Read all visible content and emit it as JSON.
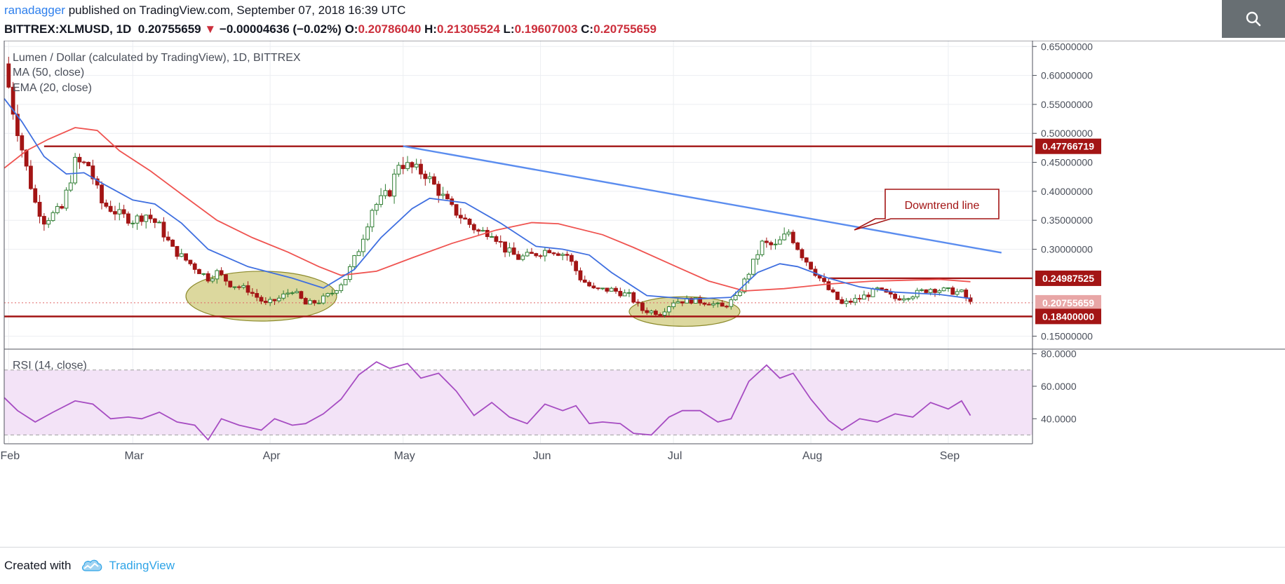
{
  "header": {
    "author": "ranadagger",
    "published_text": "published on TradingView.com, September 07, 2018 16:39 UTC",
    "symbol": "BITTREX:XLMUSD, 1D",
    "last": "0.20755659",
    "change": "−0.00004636 (−0.02%)",
    "o_label": "O:",
    "o_val": "0.20786040",
    "h_label": "H:",
    "h_val": "0.21305524",
    "l_label": "L:",
    "l_val": "0.19607003",
    "c_label": "C:",
    "c_val": "0.20755659",
    "search_icon": "search-icon"
  },
  "legend": {
    "title": "Lumen / Dollar (calculated by TradingView), 1D, BITTREX",
    "ma": "MA (50, close)",
    "ema": "EMA (20, close)",
    "rsi": "RSI (14, close)"
  },
  "annotation": {
    "text": "Downtrend line"
  },
  "footer": {
    "created_with": "Created with",
    "brand": "TradingView",
    "brand_icon": "tradingview-cloud-icon"
  },
  "colors": {
    "candle_up": "#2e7d32",
    "candle_down": "#a31515",
    "ma": "#ef5350",
    "ema": "#3f6fe0",
    "trendline": "#5b8def",
    "level": "#a31515",
    "rsi_line": "#a64cc2",
    "rsi_band": "#f3e3f7",
    "zone_fill": "#bfb84e"
  },
  "chart_data": [
    {
      "type": "candlestick",
      "title": "Lumen / Dollar (calculated by TradingView), 1D, BITTREX",
      "x_ticks": [
        "Feb",
        "Mar",
        "Apr",
        "May",
        "Jun",
        "Jul",
        "Aug",
        "Sep"
      ],
      "x_range": [
        "2018-01-31",
        "2018-09-20"
      ],
      "ylim": [
        0.13,
        0.66
      ],
      "y_ticks": [
        "0.65000000",
        "0.60000000",
        "0.55000000",
        "0.50000000",
        "0.45000000",
        "0.40000000",
        "0.35000000",
        "0.30000000",
        "0.15000000"
      ],
      "price_labels": [
        "0.47766719",
        "0.24987525",
        "0.20755659",
        "0.18400000"
      ],
      "horizontal_levels": [
        0.47766719,
        0.24987525,
        0.184
      ],
      "last_price": 0.20755659,
      "trendline": {
        "from": [
          "2018-05-01",
          0.478
        ],
        "to": [
          "2018-09-13",
          0.294
        ],
        "label": "Downtrend line"
      },
      "zones": [
        {
          "from": "2018-03-13",
          "to": "2018-04-16",
          "low": 0.176,
          "high": 0.262
        },
        {
          "from": "2018-06-21",
          "to": "2018-07-16",
          "low": 0.167,
          "high": 0.218
        }
      ],
      "series": [
        {
          "name": "MA (50, close)",
          "points": [
            [
              "2018-01-31",
              0.44
            ],
            [
              "2018-02-05",
              0.47
            ],
            [
              "2018-02-10",
              0.49
            ],
            [
              "2018-02-16",
              0.51
            ],
            [
              "2018-02-21",
              0.505
            ],
            [
              "2018-02-26",
              0.47
            ],
            [
              "2018-03-05",
              0.435
            ],
            [
              "2018-03-12",
              0.395
            ],
            [
              "2018-03-20",
              0.35
            ],
            [
              "2018-03-28",
              0.32
            ],
            [
              "2018-04-05",
              0.295
            ],
            [
              "2018-04-12",
              0.27
            ],
            [
              "2018-04-17",
              0.255
            ],
            [
              "2018-04-25",
              0.262
            ],
            [
              "2018-05-03",
              0.285
            ],
            [
              "2018-05-12",
              0.31
            ],
            [
              "2018-05-22",
              0.333
            ],
            [
              "2018-05-30",
              0.346
            ],
            [
              "2018-06-05",
              0.344
            ],
            [
              "2018-06-15",
              0.325
            ],
            [
              "2018-06-22",
              0.303
            ],
            [
              "2018-07-01",
              0.272
            ],
            [
              "2018-07-09",
              0.245
            ],
            [
              "2018-07-17",
              0.228
            ],
            [
              "2018-07-26",
              0.232
            ],
            [
              "2018-08-05",
              0.24
            ],
            [
              "2018-08-15",
              0.245
            ],
            [
              "2018-08-30",
              0.248
            ],
            [
              "2018-09-06",
              0.244
            ]
          ]
        },
        {
          "name": "EMA (20, close)",
          "points": [
            [
              "2018-01-31",
              0.56
            ],
            [
              "2018-02-04",
              0.52
            ],
            [
              "2018-02-09",
              0.46
            ],
            [
              "2018-02-14",
              0.43
            ],
            [
              "2018-02-18",
              0.432
            ],
            [
              "2018-02-23",
              0.41
            ],
            [
              "2018-03-01",
              0.385
            ],
            [
              "2018-03-06",
              0.378
            ],
            [
              "2018-03-12",
              0.345
            ],
            [
              "2018-03-18",
              0.3
            ],
            [
              "2018-03-27",
              0.27
            ],
            [
              "2018-04-06",
              0.25
            ],
            [
              "2018-04-13",
              0.233
            ],
            [
              "2018-04-20",
              0.265
            ],
            [
              "2018-04-26",
              0.32
            ],
            [
              "2018-05-03",
              0.37
            ],
            [
              "2018-05-07",
              0.388
            ],
            [
              "2018-05-15",
              0.38
            ],
            [
              "2018-05-23",
              0.345
            ],
            [
              "2018-05-31",
              0.305
            ],
            [
              "2018-06-06",
              0.3
            ],
            [
              "2018-06-12",
              0.29
            ],
            [
              "2018-06-17",
              0.26
            ],
            [
              "2018-06-25",
              0.22
            ],
            [
              "2018-07-05",
              0.214
            ],
            [
              "2018-07-14",
              0.217
            ],
            [
              "2018-07-20",
              0.26
            ],
            [
              "2018-07-25",
              0.275
            ],
            [
              "2018-07-29",
              0.27
            ],
            [
              "2018-08-05",
              0.25
            ],
            [
              "2018-08-12",
              0.235
            ],
            [
              "2018-08-20",
              0.226
            ],
            [
              "2018-08-30",
              0.222
            ],
            [
              "2018-09-06",
              0.215
            ]
          ]
        },
        {
          "name": "XLMUSD close",
          "points": [
            [
              "2018-01-31",
              0.62
            ],
            [
              "2018-02-02",
              0.54
            ],
            [
              "2018-02-05",
              0.44
            ],
            [
              "2018-02-07",
              0.38
            ],
            [
              "2018-02-09",
              0.35
            ],
            [
              "2018-02-13",
              0.37
            ],
            [
              "2018-02-16",
              0.45
            ],
            [
              "2018-02-19",
              0.445
            ],
            [
              "2018-02-22",
              0.38
            ],
            [
              "2018-02-26",
              0.36
            ],
            [
              "2018-03-01",
              0.35
            ],
            [
              "2018-03-04",
              0.36
            ],
            [
              "2018-03-07",
              0.34
            ],
            [
              "2018-03-10",
              0.3
            ],
            [
              "2018-03-14",
              0.275
            ],
            [
              "2018-03-18",
              0.25
            ],
            [
              "2018-03-20",
              0.26
            ],
            [
              "2018-03-23",
              0.24
            ],
            [
              "2018-03-27",
              0.23
            ],
            [
              "2018-03-31",
              0.205
            ],
            [
              "2018-04-03",
              0.215
            ],
            [
              "2018-04-06",
              0.23
            ],
            [
              "2018-04-09",
              0.205
            ],
            [
              "2018-04-12",
              0.21
            ],
            [
              "2018-04-15",
              0.225
            ],
            [
              "2018-04-18",
              0.25
            ],
            [
              "2018-04-21",
              0.3
            ],
            [
              "2018-04-24",
              0.37
            ],
            [
              "2018-04-28",
              0.4
            ],
            [
              "2018-04-30",
              0.45
            ],
            [
              "2018-05-03",
              0.44
            ],
            [
              "2018-05-06",
              0.43
            ],
            [
              "2018-05-09",
              0.4
            ],
            [
              "2018-05-12",
              0.37
            ],
            [
              "2018-05-15",
              0.35
            ],
            [
              "2018-05-18",
              0.33
            ],
            [
              "2018-05-21",
              0.33
            ],
            [
              "2018-05-24",
              0.3
            ],
            [
              "2018-05-27",
              0.285
            ],
            [
              "2018-05-30",
              0.29
            ],
            [
              "2018-06-03",
              0.3
            ],
            [
              "2018-06-07",
              0.29
            ],
            [
              "2018-06-10",
              0.25
            ],
            [
              "2018-06-13",
              0.23
            ],
            [
              "2018-06-17",
              0.23
            ],
            [
              "2018-06-21",
              0.22
            ],
            [
              "2018-06-24",
              0.195
            ],
            [
              "2018-06-28",
              0.19
            ],
            [
              "2018-07-01",
              0.21
            ],
            [
              "2018-07-05",
              0.212
            ],
            [
              "2018-07-09",
              0.208
            ],
            [
              "2018-07-12",
              0.2
            ],
            [
              "2018-07-15",
              0.215
            ],
            [
              "2018-07-18",
              0.26
            ],
            [
              "2018-07-21",
              0.31
            ],
            [
              "2018-07-24",
              0.305
            ],
            [
              "2018-07-27",
              0.33
            ],
            [
              "2018-07-30",
              0.29
            ],
            [
              "2018-08-02",
              0.26
            ],
            [
              "2018-08-05",
              0.23
            ],
            [
              "2018-08-08",
              0.205
            ],
            [
              "2018-08-12",
              0.215
            ],
            [
              "2018-08-16",
              0.23
            ],
            [
              "2018-08-20",
              0.215
            ],
            [
              "2018-08-24",
              0.222
            ],
            [
              "2018-08-28",
              0.232
            ],
            [
              "2018-09-01",
              0.228
            ],
            [
              "2018-09-04",
              0.225
            ],
            [
              "2018-09-06",
              0.207
            ]
          ]
        }
      ]
    },
    {
      "type": "line",
      "title": "RSI (14, close)",
      "ylim": [
        25,
        82
      ],
      "y_ticks": [
        "80.0000",
        "60.0000",
        "40.0000"
      ],
      "band": [
        30,
        70
      ],
      "series": [
        {
          "name": "RSI (14, close)",
          "points": [
            [
              "2018-01-31",
              53
            ],
            [
              "2018-02-03",
              45
            ],
            [
              "2018-02-07",
              38
            ],
            [
              "2018-02-11",
              44
            ],
            [
              "2018-02-16",
              51
            ],
            [
              "2018-02-20",
              49
            ],
            [
              "2018-02-24",
              40
            ],
            [
              "2018-02-28",
              41
            ],
            [
              "2018-03-03",
              40
            ],
            [
              "2018-03-07",
              44
            ],
            [
              "2018-03-11",
              38
            ],
            [
              "2018-03-15",
              36
            ],
            [
              "2018-03-18",
              27
            ],
            [
              "2018-03-21",
              40
            ],
            [
              "2018-03-25",
              36
            ],
            [
              "2018-03-30",
              33
            ],
            [
              "2018-04-02",
              40
            ],
            [
              "2018-04-06",
              36
            ],
            [
              "2018-04-09",
              37
            ],
            [
              "2018-04-13",
              43
            ],
            [
              "2018-04-17",
              52
            ],
            [
              "2018-04-21",
              67
            ],
            [
              "2018-04-25",
              75
            ],
            [
              "2018-04-28",
              71
            ],
            [
              "2018-05-02",
              74
            ],
            [
              "2018-05-05",
              65
            ],
            [
              "2018-05-09",
              68
            ],
            [
              "2018-05-13",
              57
            ],
            [
              "2018-05-17",
              42
            ],
            [
              "2018-05-21",
              50
            ],
            [
              "2018-05-25",
              41
            ],
            [
              "2018-05-29",
              37
            ],
            [
              "2018-06-02",
              49
            ],
            [
              "2018-06-06",
              45
            ],
            [
              "2018-06-09",
              48
            ],
            [
              "2018-06-12",
              37
            ],
            [
              "2018-06-15",
              38
            ],
            [
              "2018-06-19",
              37
            ],
            [
              "2018-06-22",
              31
            ],
            [
              "2018-06-26",
              30
            ],
            [
              "2018-06-30",
              41
            ],
            [
              "2018-07-03",
              45
            ],
            [
              "2018-07-07",
              45
            ],
            [
              "2018-07-11",
              38
            ],
            [
              "2018-07-14",
              40
            ],
            [
              "2018-07-18",
              63
            ],
            [
              "2018-07-22",
              73
            ],
            [
              "2018-07-25",
              65
            ],
            [
              "2018-07-28",
              68
            ],
            [
              "2018-08-01",
              52
            ],
            [
              "2018-08-05",
              39
            ],
            [
              "2018-08-08",
              33
            ],
            [
              "2018-08-12",
              40
            ],
            [
              "2018-08-16",
              38
            ],
            [
              "2018-08-20",
              43
            ],
            [
              "2018-08-24",
              41
            ],
            [
              "2018-08-28",
              50
            ],
            [
              "2018-09-01",
              46
            ],
            [
              "2018-09-04",
              51
            ],
            [
              "2018-09-06",
              42
            ]
          ]
        }
      ]
    }
  ]
}
